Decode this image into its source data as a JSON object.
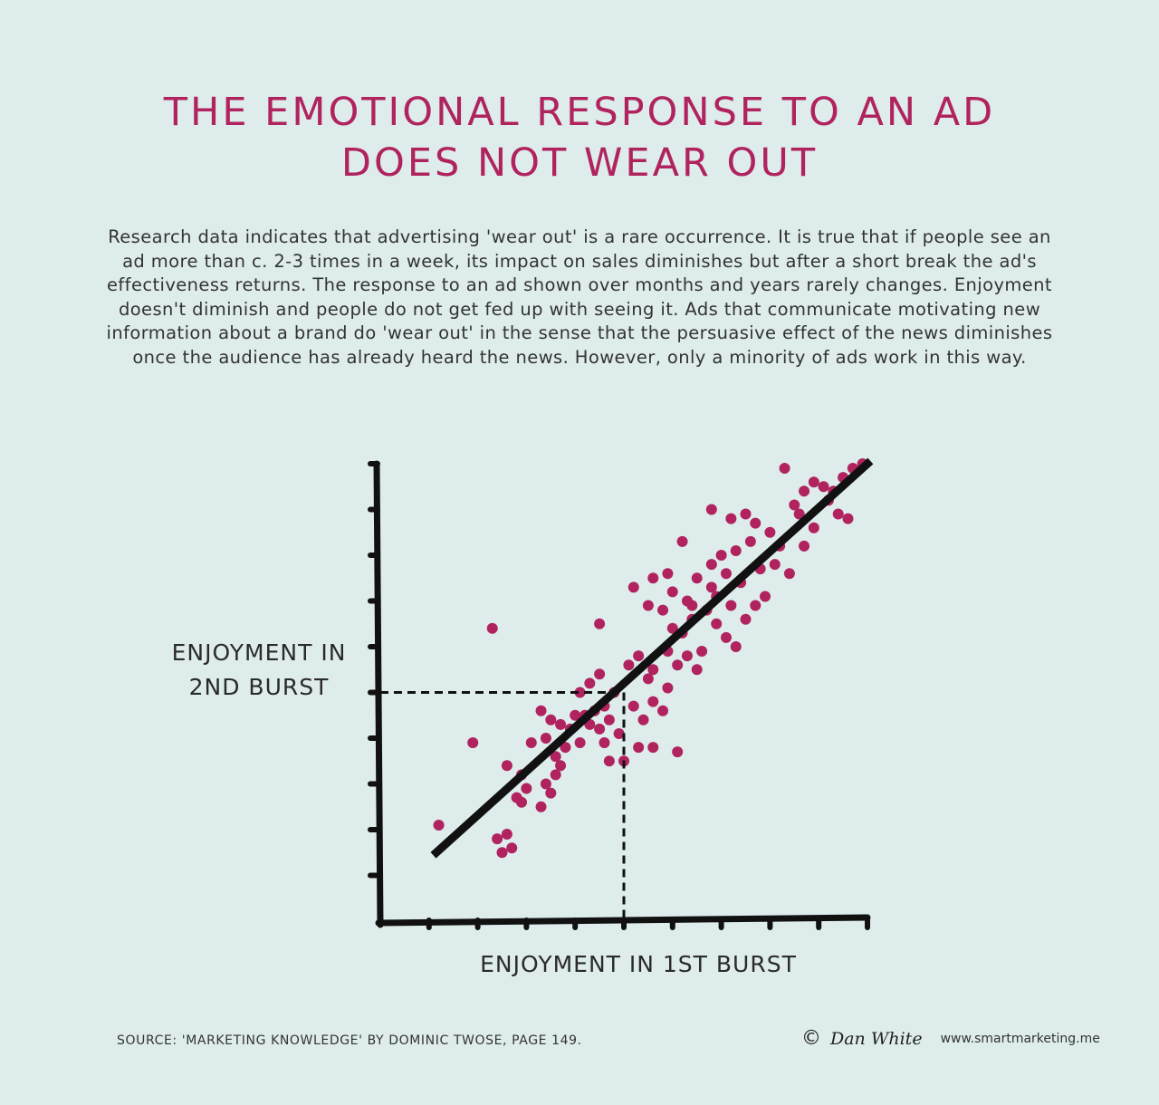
{
  "title": {
    "line1": "THE EMOTIONAL RESPONSE TO AN AD",
    "line2": "DOES NOT WEAR OUT"
  },
  "description": {
    "lines": [
      "Research data indicates that advertising 'wear out' is a rare occurrence. It is true that if people see an",
      "ad more than c. 2-3 times in a week, its impact on sales diminishes but after a short break the ad's",
      "effectiveness returns. The response to an ad shown over months and years rarely changes. Enjoyment",
      "doesn't diminish and people do not get fed up with seeing it. Ads that communicate motivating new",
      "information about a brand do 'wear out' in the sense that the persuasive effect of the news diminishes",
      "once the audience has already heard the news. However, only a minority of ads work in this way."
    ]
  },
  "colors": {
    "background": "#deedec",
    "accent": "#b0235e",
    "axis": "#111111"
  },
  "footer": {
    "source": "SOURCE: 'MARKETING KNOWLEDGE' BY DOMINIC TWOSE, PAGE 149.",
    "copyright_symbol": "©",
    "author": "Dan White",
    "url": "www.smartmarketing.me"
  },
  "chart_data": {
    "type": "scatter",
    "title": "THE EMOTIONAL RESPONSE TO AN AD DOES NOT WEAR OUT",
    "xlabel": "ENJOYMENT IN 1ST BURST",
    "ylabel_lines": [
      "ENJOYMENT IN",
      "2ND BURST"
    ],
    "xlabel_text": "ENJOYMENT IN 1ST BURST",
    "xlim": [
      0,
      10
    ],
    "ylim": [
      0,
      10
    ],
    "x_ticks": 10,
    "y_ticks": 10,
    "tick_labels": "none",
    "grid": false,
    "legend": "none",
    "trend_line": {
      "x": [
        1.15,
        10.0
      ],
      "y": [
        1.5,
        10.0
      ]
    },
    "reference_point": {
      "x": 5.0,
      "y": 5.0,
      "style": "dashed guide lines to both axes"
    },
    "series": [
      {
        "name": "ads",
        "color": "#b0235e",
        "points": [
          [
            1.2,
            2.1
          ],
          [
            2.3,
            6.4
          ],
          [
            1.9,
            3.9
          ],
          [
            2.4,
            1.8
          ],
          [
            2.6,
            1.9
          ],
          [
            2.5,
            1.5
          ],
          [
            2.7,
            1.6
          ],
          [
            2.6,
            3.4
          ],
          [
            2.9,
            3.2
          ],
          [
            2.8,
            2.7
          ],
          [
            2.9,
            2.6
          ],
          [
            3.0,
            2.9
          ],
          [
            3.3,
            2.5
          ],
          [
            3.4,
            3.0
          ],
          [
            3.6,
            3.2
          ],
          [
            3.5,
            2.8
          ],
          [
            3.7,
            3.4
          ],
          [
            3.6,
            3.6
          ],
          [
            3.4,
            4.0
          ],
          [
            3.8,
            3.8
          ],
          [
            3.1,
            3.9
          ],
          [
            3.3,
            4.6
          ],
          [
            3.5,
            4.4
          ],
          [
            3.7,
            4.3
          ],
          [
            3.9,
            4.2
          ],
          [
            4.0,
            4.5
          ],
          [
            4.1,
            3.9
          ],
          [
            4.3,
            4.3
          ],
          [
            4.5,
            4.2
          ],
          [
            4.2,
            4.5
          ],
          [
            4.4,
            4.6
          ],
          [
            4.6,
            4.7
          ],
          [
            4.1,
            5.0
          ],
          [
            4.3,
            5.2
          ],
          [
            4.5,
            5.4
          ],
          [
            4.8,
            5.0
          ],
          [
            4.7,
            4.4
          ],
          [
            4.9,
            4.1
          ],
          [
            4.6,
            3.9
          ],
          [
            5.3,
            3.8
          ],
          [
            4.7,
            3.5
          ],
          [
            5.0,
            3.5
          ],
          [
            5.2,
            4.7
          ],
          [
            5.4,
            4.4
          ],
          [
            5.6,
            4.8
          ],
          [
            5.8,
            4.6
          ],
          [
            5.6,
            3.8
          ],
          [
            6.1,
            3.7
          ],
          [
            5.9,
            5.1
          ],
          [
            5.5,
            5.3
          ],
          [
            5.1,
            5.6
          ],
          [
            5.3,
            5.8
          ],
          [
            5.6,
            5.5
          ],
          [
            5.9,
            5.9
          ],
          [
            6.1,
            5.6
          ],
          [
            6.3,
            5.8
          ],
          [
            6.6,
            5.9
          ],
          [
            6.5,
            5.5
          ],
          [
            6.2,
            6.3
          ],
          [
            6.4,
            6.6
          ],
          [
            6.0,
            6.4
          ],
          [
            5.8,
            6.8
          ],
          [
            5.5,
            6.9
          ],
          [
            4.5,
            6.5
          ],
          [
            5.2,
            7.3
          ],
          [
            5.6,
            7.5
          ],
          [
            6.0,
            7.2
          ],
          [
            6.3,
            7.0
          ],
          [
            6.7,
            6.8
          ],
          [
            6.9,
            6.5
          ],
          [
            7.1,
            6.2
          ],
          [
            7.3,
            6.0
          ],
          [
            6.9,
            7.1
          ],
          [
            7.2,
            6.9
          ],
          [
            7.5,
            6.6
          ],
          [
            7.7,
            6.9
          ],
          [
            7.9,
            7.1
          ],
          [
            7.4,
            7.4
          ],
          [
            7.1,
            7.6
          ],
          [
            6.8,
            7.8
          ],
          [
            6.5,
            7.5
          ],
          [
            7.0,
            8.0
          ],
          [
            7.3,
            8.1
          ],
          [
            7.6,
            8.3
          ],
          [
            7.8,
            7.7
          ],
          [
            8.1,
            7.8
          ],
          [
            8.4,
            7.6
          ],
          [
            8.2,
            8.2
          ],
          [
            8.0,
            8.5
          ],
          [
            7.7,
            8.7
          ],
          [
            7.2,
            8.8
          ],
          [
            6.8,
            9.0
          ],
          [
            7.5,
            8.9
          ],
          [
            8.7,
            8.2
          ],
          [
            8.9,
            8.6
          ],
          [
            8.5,
            9.1
          ],
          [
            8.7,
            9.4
          ],
          [
            8.9,
            9.6
          ],
          [
            9.1,
            9.5
          ],
          [
            9.3,
            9.4
          ],
          [
            9.5,
            9.7
          ],
          [
            9.2,
            9.2
          ],
          [
            9.7,
            9.9
          ],
          [
            9.9,
            10.0
          ],
          [
            9.6,
            8.8
          ],
          [
            9.4,
            8.9
          ],
          [
            8.3,
            9.9
          ],
          [
            8.6,
            8.9
          ],
          [
            6.2,
            8.3
          ],
          [
            6.8,
            7.3
          ],
          [
            5.9,
            7.6
          ],
          [
            6.4,
            6.9
          ]
        ]
      }
    ]
  }
}
